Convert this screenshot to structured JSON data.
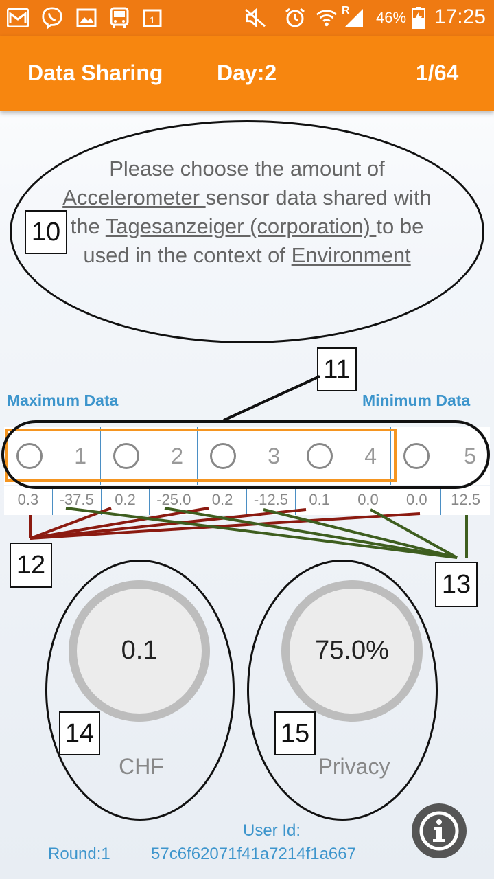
{
  "status_bar": {
    "icons": [
      "gmail-icon",
      "viber-icon",
      "gallery-icon",
      "bus-icon",
      "calendar-icon",
      "mute-icon",
      "alarm-icon",
      "wifi-icon",
      "signal-icon",
      "battery-charging-icon"
    ],
    "roaming": "R",
    "battery": "46%",
    "time": "17:25"
  },
  "app_bar": {
    "title": "Data Sharing",
    "day": "Day:2",
    "progress": "1/64"
  },
  "question": {
    "part1": "Please choose the amount of ",
    "sensor": "Accelerometer ",
    "part2": "sensor data shared with the ",
    "recipient": "Tagesanzeiger (corporation) ",
    "part3": "to be used in the context of ",
    "context": "Environment "
  },
  "annotations": {
    "n10": "10",
    "n11": "11",
    "n12": "12",
    "n13": "13",
    "n14": "14",
    "n15": "15"
  },
  "scale": {
    "max_label": "Maximum Data",
    "min_label": "Minimum Data",
    "options": [
      "1",
      "2",
      "3",
      "4",
      "5"
    ],
    "values": [
      "0.3",
      "-37.5",
      "0.2",
      "-25.0",
      "0.2",
      "-12.5",
      "0.1",
      "0.0",
      "0.0",
      "12.5"
    ]
  },
  "gauges": {
    "money": {
      "value": "0.1",
      "label": "CHF"
    },
    "privacy": {
      "value": "75.0%",
      "label": "Privacy"
    }
  },
  "footer": {
    "round": "Round:1",
    "user_id_label": "User Id:",
    "user_id": "57c6f62071f41a7214f1a667"
  },
  "colors": {
    "status_bar": "#ef7a12",
    "app_bar": "#f7860f",
    "accent_blue": "#3d95cc",
    "line_red": "#8b1a10",
    "line_green": "#3e5e1f"
  }
}
